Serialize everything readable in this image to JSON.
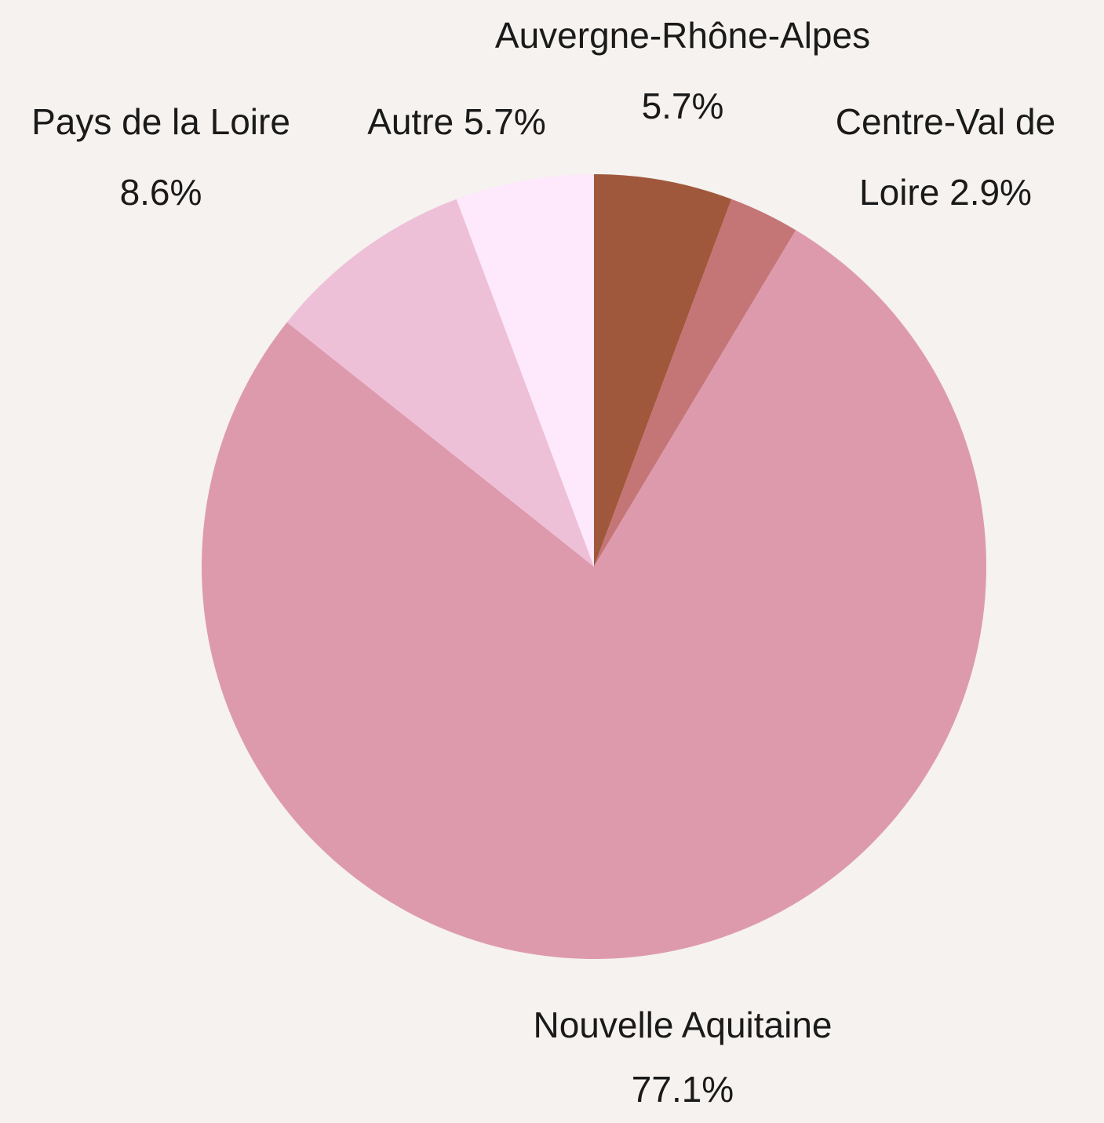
{
  "chart_data": {
    "type": "pie",
    "categories": [
      "Auvergne-Rhône-Alpes",
      "Centre-Val de Loire",
      "Nouvelle Aquitaine",
      "Pays de la Loire",
      "Autre"
    ],
    "values": [
      5.7,
      2.9,
      77.1,
      8.6,
      5.7
    ],
    "value_labels": [
      "5.7%",
      "2.9%",
      "77.1%",
      "8.6%",
      "5.7%"
    ],
    "colors": [
      "#a0583c",
      "#c47576",
      "#de9aad",
      "#eec0d8",
      "#fde9fb"
    ]
  }
}
